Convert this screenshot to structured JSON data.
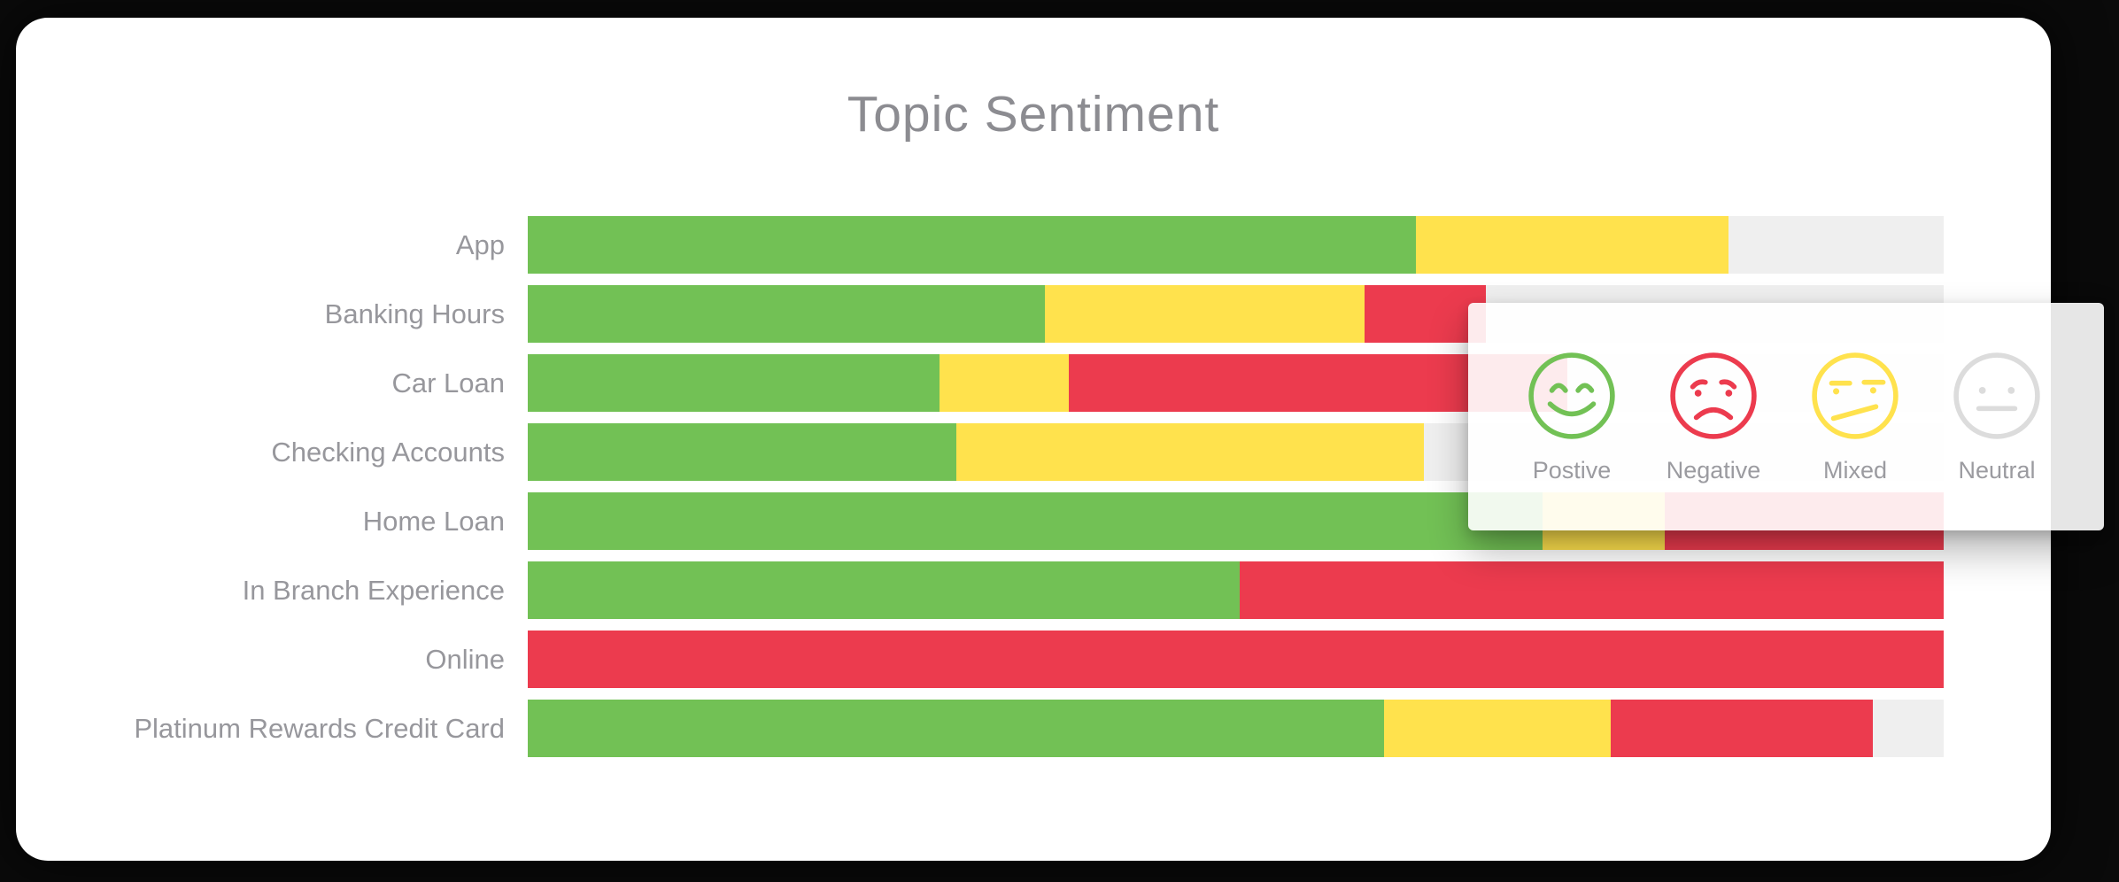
{
  "title": "Topic Sentiment",
  "colors": {
    "positive": "#72C155",
    "negative": "#EC3B4E",
    "mixed": "#FFE24D",
    "neutral": "#EFEFEF",
    "neutral_face": "#DCDCDC",
    "card_bg": "#FFFFFF",
    "background": "#0A0A0A",
    "title_text": "#8C8C91",
    "label_text": "#97979C",
    "legend_text": "#9B9BA0"
  },
  "chart_data": {
    "type": "bar",
    "orientation": "horizontal-stacked",
    "title": "Topic Sentiment",
    "xlabel": "",
    "ylabel": "",
    "xlim": [
      0,
      100
    ],
    "units": "percent of bar (estimated from pixel widths)",
    "grid": false,
    "legend_position": "overlay-right",
    "categories": [
      "App",
      "Banking Hours",
      "Car Loan",
      "Checking Accounts",
      "Home Loan",
      "In Branch Experience",
      "Online",
      "Platinum Rewards Credit Card"
    ],
    "series": [
      {
        "name": "Positive",
        "key": "positive",
        "values": [
          62.7,
          36.5,
          29.1,
          30.3,
          71.7,
          50.3,
          0,
          60.5
        ]
      },
      {
        "name": "Mixed",
        "key": "mixed",
        "values": [
          22.1,
          22.6,
          9.1,
          33.0,
          8.6,
          0,
          0,
          16.0
        ]
      },
      {
        "name": "Negative",
        "key": "negative",
        "values": [
          0,
          8.6,
          35.2,
          0,
          19.7,
          49.7,
          100,
          18.5
        ]
      },
      {
        "name": "Neutral",
        "key": "neutral",
        "values": [
          15.2,
          32.3,
          26.6,
          36.7,
          0,
          0,
          0,
          5.0
        ]
      }
    ]
  },
  "legend": {
    "items": [
      {
        "key": "positive",
        "label": "Postive"
      },
      {
        "key": "negative",
        "label": "Negative"
      },
      {
        "key": "mixed",
        "label": "Mixed"
      },
      {
        "key": "neutral",
        "label": "Neutral"
      }
    ]
  }
}
